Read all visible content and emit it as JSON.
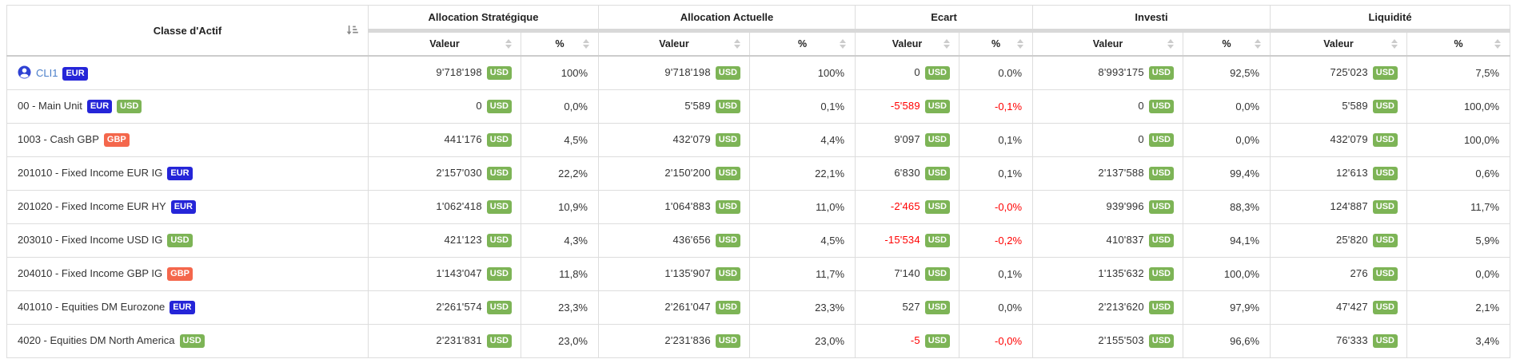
{
  "table": {
    "header": {
      "asset_class": "Classe d'Actif",
      "sub_value": "Valeur",
      "sub_percent": "%",
      "groups": [
        "Allocation Stratégique",
        "Allocation Actuelle",
        "Ecart",
        "Investi",
        "Liquidité"
      ]
    },
    "colors": {
      "badge_colors": {
        "EUR": "#2525d8",
        "USD": "#7db456",
        "GBP": "#f4674c"
      },
      "negative": "#ff0000",
      "client_link": "#4a7ec9",
      "person_icon": "#2e41d3"
    },
    "currency_badge": "USD",
    "rows": [
      {
        "label": "CLI1",
        "client": true,
        "badges": [
          "EUR"
        ],
        "values": [
          {
            "v": "9'718'198",
            "p": "100%"
          },
          {
            "v": "9'718'198",
            "p": "100%"
          },
          {
            "v": "0",
            "p": "0.0%"
          },
          {
            "v": "8'993'175",
            "p": "92,5%"
          },
          {
            "v": "725'023",
            "p": "7,5%"
          }
        ]
      },
      {
        "label": "00 - Main Unit",
        "client": false,
        "badges": [
          "EUR",
          "USD"
        ],
        "values": [
          {
            "v": "0",
            "p": "0,0%"
          },
          {
            "v": "5'589",
            "p": "0,1%"
          },
          {
            "v": "-5'589",
            "p": "-0,1%"
          },
          {
            "v": "0",
            "p": "0,0%"
          },
          {
            "v": "5'589",
            "p": "100,0%"
          }
        ]
      },
      {
        "label": "1003 - Cash GBP",
        "client": false,
        "badges": [
          "GBP"
        ],
        "values": [
          {
            "v": "441'176",
            "p": "4,5%"
          },
          {
            "v": "432'079",
            "p": "4,4%"
          },
          {
            "v": "9'097",
            "p": "0,1%"
          },
          {
            "v": "0",
            "p": "0,0%"
          },
          {
            "v": "432'079",
            "p": "100,0%"
          }
        ]
      },
      {
        "label": "201010 - Fixed Income EUR IG",
        "client": false,
        "badges": [
          "EUR"
        ],
        "values": [
          {
            "v": "2'157'030",
            "p": "22,2%"
          },
          {
            "v": "2'150'200",
            "p": "22,1%"
          },
          {
            "v": "6'830",
            "p": "0,1%"
          },
          {
            "v": "2'137'588",
            "p": "99,4%"
          },
          {
            "v": "12'613",
            "p": "0,6%"
          }
        ]
      },
      {
        "label": "201020 - Fixed Income EUR HY",
        "client": false,
        "badges": [
          "EUR"
        ],
        "values": [
          {
            "v": "1'062'418",
            "p": "10,9%"
          },
          {
            "v": "1'064'883",
            "p": "11,0%"
          },
          {
            "v": "-2'465",
            "p": "-0,0%"
          },
          {
            "v": "939'996",
            "p": "88,3%"
          },
          {
            "v": "124'887",
            "p": "11,7%"
          }
        ]
      },
      {
        "label": "203010 - Fixed Income USD IG",
        "client": false,
        "badges": [
          "USD"
        ],
        "values": [
          {
            "v": "421'123",
            "p": "4,3%"
          },
          {
            "v": "436'656",
            "p": "4,5%"
          },
          {
            "v": "-15'534",
            "p": "-0,2%"
          },
          {
            "v": "410'837",
            "p": "94,1%"
          },
          {
            "v": "25'820",
            "p": "5,9%"
          }
        ]
      },
      {
        "label": "204010 - Fixed Income GBP IG",
        "client": false,
        "badges": [
          "GBP"
        ],
        "values": [
          {
            "v": "1'143'047",
            "p": "11,8%"
          },
          {
            "v": "1'135'907",
            "p": "11,7%"
          },
          {
            "v": "7'140",
            "p": "0,1%"
          },
          {
            "v": "1'135'632",
            "p": "100,0%"
          },
          {
            "v": "276",
            "p": "0,0%"
          }
        ]
      },
      {
        "label": "401010 - Equities DM Eurozone",
        "client": false,
        "badges": [
          "EUR"
        ],
        "values": [
          {
            "v": "2'261'574",
            "p": "23,3%"
          },
          {
            "v": "2'261'047",
            "p": "23,3%"
          },
          {
            "v": "527",
            "p": "0,0%"
          },
          {
            "v": "2'213'620",
            "p": "97,9%"
          },
          {
            "v": "47'427",
            "p": "2,1%"
          }
        ]
      },
      {
        "label": "4020 - Equities DM North America",
        "client": false,
        "badges": [
          "USD"
        ],
        "values": [
          {
            "v": "2'231'831",
            "p": "23,0%"
          },
          {
            "v": "2'231'836",
            "p": "23,0%"
          },
          {
            "v": "-5",
            "p": "-0,0%"
          },
          {
            "v": "2'155'503",
            "p": "96,6%"
          },
          {
            "v": "76'333",
            "p": "3,4%"
          }
        ]
      }
    ]
  }
}
